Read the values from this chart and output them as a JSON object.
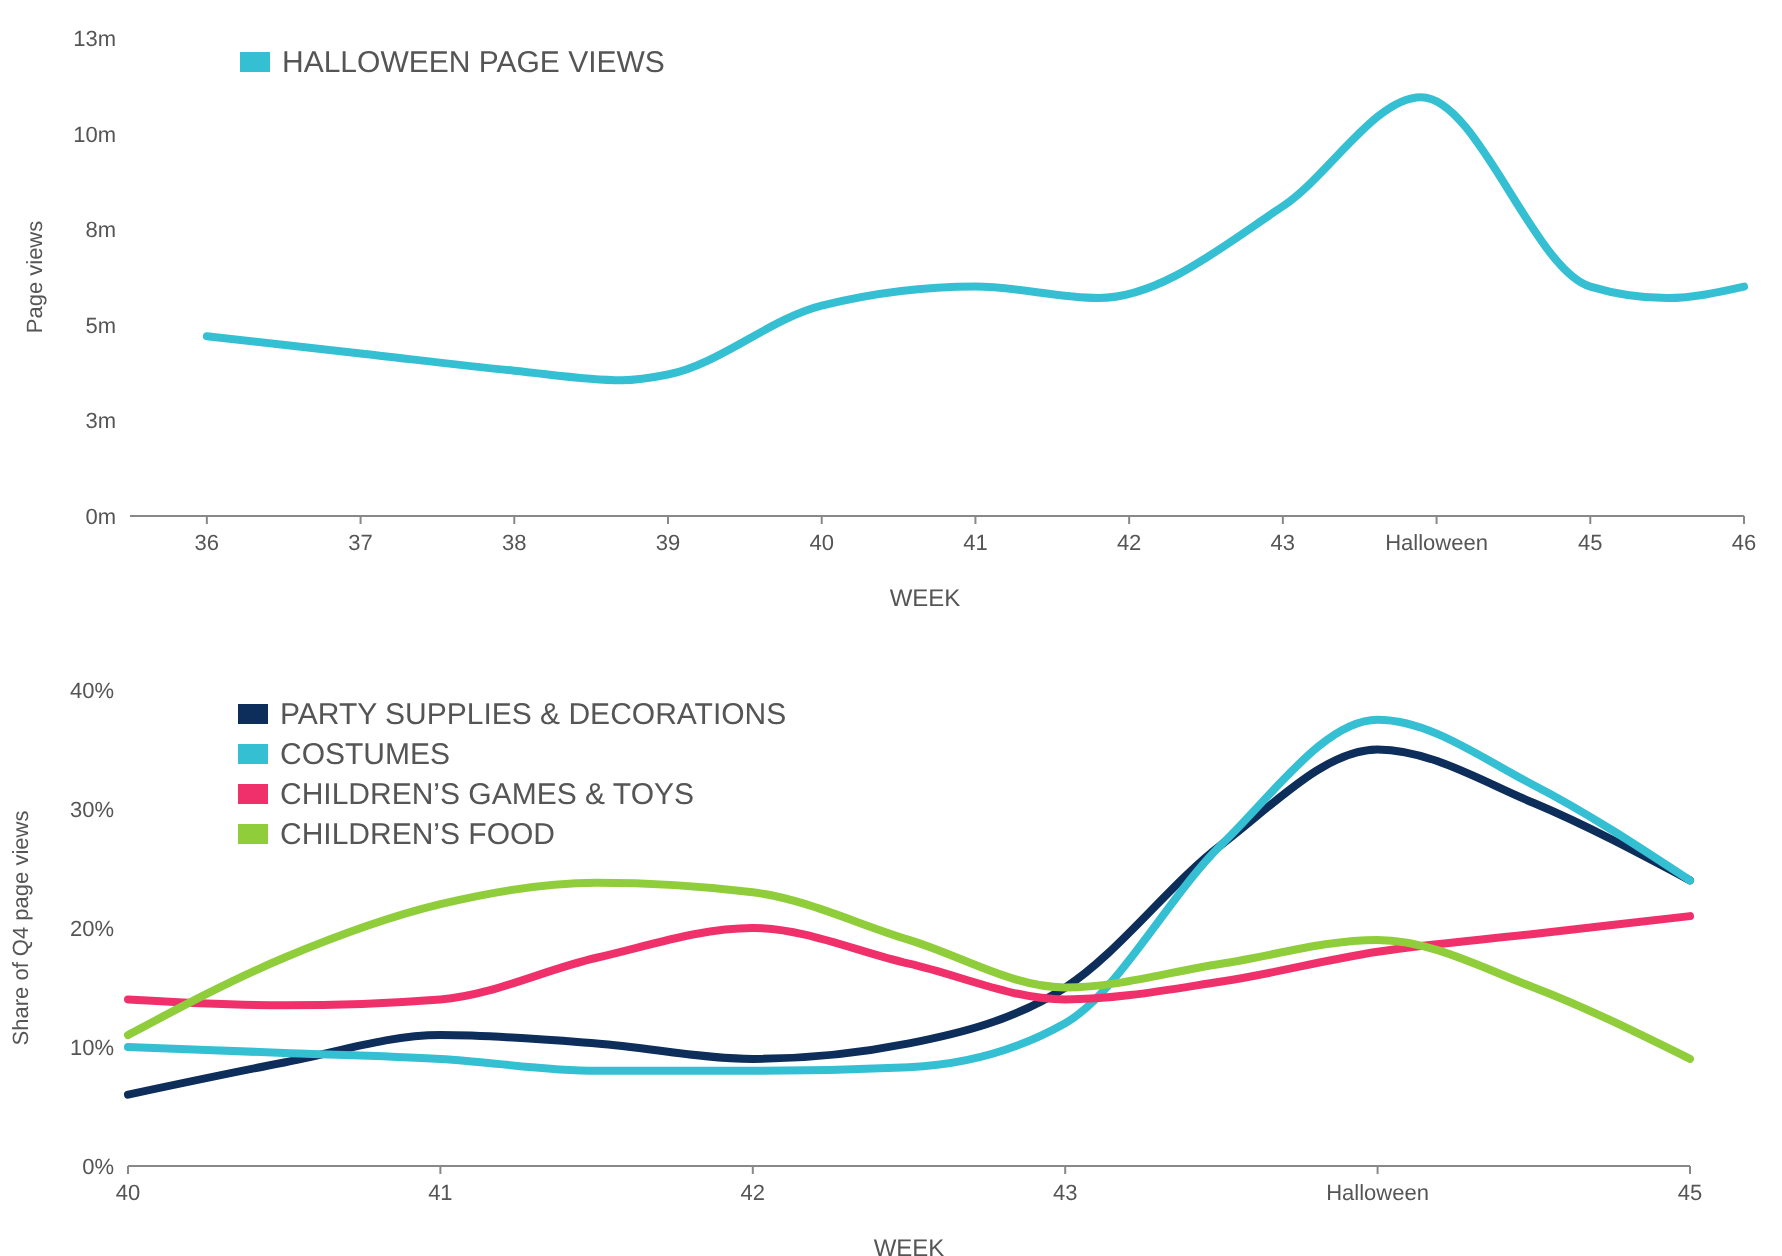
{
  "chart_data": [
    {
      "type": "line",
      "ylabel": "Page views",
      "xlabel": "WEEK",
      "legend": "top left",
      "xlim": [
        35.5,
        46
      ],
      "xticks": [
        36,
        37,
        38,
        39,
        40,
        41,
        42,
        43,
        {
          "value": 44,
          "label": "Halloween"
        },
        45,
        46
      ],
      "ylim": [
        0,
        12.5
      ],
      "yticks": [
        {
          "value": 0,
          "label": "0m"
        },
        {
          "value": 2.5,
          "label": "3m"
        },
        {
          "value": 5,
          "label": "5m"
        },
        {
          "value": 7.5,
          "label": "8m"
        },
        {
          "value": 10,
          "label": "10m"
        },
        {
          "value": 12.5,
          "label": "13m"
        }
      ],
      "series": [
        {
          "name": "HALLOWEEN PAGE VIEWS",
          "color": "#35bfd3",
          "x": [
            36,
            37,
            38,
            38.7,
            39,
            40,
            41,
            41.8,
            43,
            43.9,
            45,
            45.5,
            46
          ],
          "values": [
            4.7,
            4.25,
            3.8,
            3.55,
            3.7,
            5.5,
            6.0,
            5.7,
            8.1,
            10.95,
            6.0,
            5.7,
            6.0
          ]
        }
      ]
    },
    {
      "type": "line",
      "ylabel": "Share of Q4 page views",
      "xlabel": "WEEK",
      "legend": "top left",
      "xlim": [
        40,
        45
      ],
      "xticks": [
        40,
        41,
        42,
        43,
        {
          "value": 44,
          "label": "Halloween"
        },
        45
      ],
      "ylim": [
        0,
        40
      ],
      "yticks": [
        {
          "value": 0,
          "label": "0%"
        },
        {
          "value": 10,
          "label": "10%"
        },
        {
          "value": 20,
          "label": "20%"
        },
        {
          "value": 30,
          "label": "30%"
        },
        {
          "value": 40,
          "label": "40%"
        }
      ],
      "x": [
        40,
        40.5,
        41,
        41.5,
        42,
        42.5,
        43,
        43.5,
        44,
        44.5,
        45
      ],
      "series": [
        {
          "name": "PARTY SUPPLIES & DECORATIONS",
          "color": "#0d2d5a",
          "values": [
            6,
            8.7,
            11,
            10.3,
            9,
            10.3,
            15,
            27,
            35,
            30.5,
            24
          ]
        },
        {
          "name": "COSTUMES",
          "color": "#35bfd3",
          "values": [
            10,
            9.5,
            9,
            8,
            8,
            8.3,
            12,
            27,
            37.5,
            32,
            24
          ]
        },
        {
          "name": "CHILDREN’S GAMES & TOYS",
          "color": "#f0306a",
          "values": [
            14,
            13.5,
            14,
            17.5,
            20,
            17,
            14,
            15.5,
            18,
            19.5,
            21
          ]
        },
        {
          "name": "CHILDREN’S FOOD",
          "color": "#8fce3a",
          "values": [
            11,
            17.5,
            22,
            23.8,
            23,
            19,
            15,
            17,
            19,
            15,
            9
          ]
        }
      ]
    }
  ]
}
